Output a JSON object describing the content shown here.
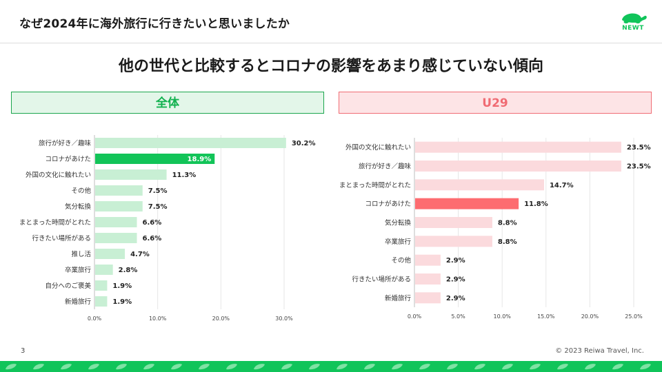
{
  "header": {
    "title": "なぜ2024年に海外旅行に行きたいと思いましたか",
    "logo_text": "NEWT"
  },
  "subtitle": "他の世代と比較するとコロナの影響をあまり感じていない傾向",
  "footer": {
    "page_number": "3",
    "copyright": "© 2023 Reiwa Travel, Inc."
  },
  "colors": {
    "green_bar": "#c8efd4",
    "green_highlight": "#12c458",
    "pink_bar": "#fbdadd",
    "pink_highlight": "#fd6c70",
    "green_text": "#10b14e",
    "pink_text": "#f06b73"
  },
  "chart_data": [
    {
      "type": "bar",
      "orientation": "horizontal",
      "title": "全体",
      "categories": [
        "旅行が好き／趣味",
        "コロナがあけた",
        "外国の文化に触れたい",
        "その他",
        "気分転換",
        "まとまった時間がとれた",
        "行きたい場所がある",
        "推し活",
        "卒業旅行",
        "自分へのご褒美",
        "新婚旅行"
      ],
      "values": [
        30.2,
        18.9,
        11.3,
        7.5,
        7.5,
        6.6,
        6.6,
        4.7,
        2.8,
        1.9,
        1.9
      ],
      "value_labels": [
        "30.2%",
        "18.9%",
        "11.3%",
        "7.5%",
        "7.5%",
        "6.6%",
        "6.6%",
        "4.7%",
        "2.8%",
        "1.9%",
        "1.9%"
      ],
      "highlight_index": 1,
      "xlim": [
        0,
        30
      ],
      "xticks": [
        0,
        10,
        20,
        30
      ],
      "xtick_labels": [
        "0.0%",
        "10.0%",
        "20.0%",
        "30.0%"
      ],
      "grid": true
    },
    {
      "type": "bar",
      "orientation": "horizontal",
      "title": "U29",
      "categories": [
        "外国の文化に触れたい",
        "旅行が好き／趣味",
        "まとまった時間がとれた",
        "コロナがあけた",
        "気分転換",
        "卒業旅行",
        "その他",
        "行きたい場所がある",
        "新婚旅行"
      ],
      "values": [
        23.5,
        23.5,
        14.7,
        11.8,
        8.8,
        8.8,
        2.9,
        2.9,
        2.9
      ],
      "value_labels": [
        "23.5%",
        "23.5%",
        "14.7%",
        "11.8%",
        "8.8%",
        "8.8%",
        "2.9%",
        "2.9%",
        "2.9%"
      ],
      "highlight_index": 3,
      "xlim": [
        0,
        25
      ],
      "xticks": [
        0,
        5,
        10,
        15,
        20,
        25
      ],
      "xtick_labels": [
        "0.0%",
        "5.0%",
        "10.0%",
        "15.0%",
        "20.0%",
        "25.0%"
      ],
      "grid": true
    }
  ]
}
